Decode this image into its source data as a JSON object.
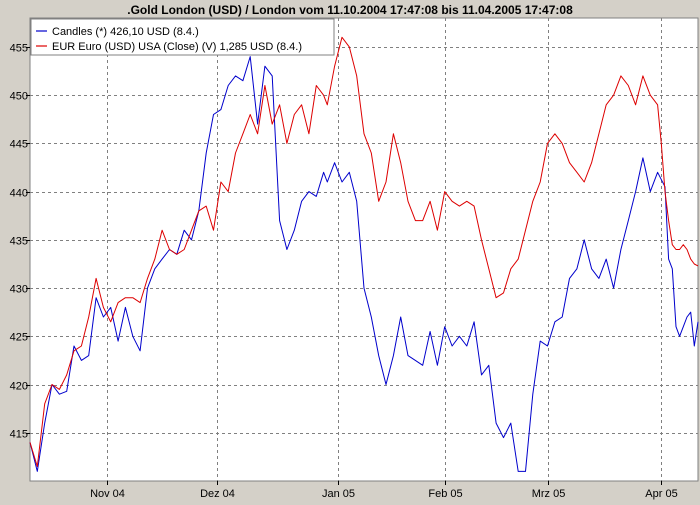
{
  "chart_data": {
    "type": "line",
    "title": ".Gold London (USD) / London vom 11.10.2004 17:47:08 bis 11.04.2005 17:47:08",
    "legend": {
      "placement": "top-left",
      "entries": [
        "Candles (*) 426,10 USD (8.4.)",
        "EUR Euro (USD) USA (Close) (V) 1,285 USD (8.4.)"
      ]
    },
    "colors": {
      "background": "#ffffff",
      "frame": "#d4d0c8",
      "grid": "#808080"
    },
    "grid": true,
    "x_axis": {
      "range": [
        "2004-10-11",
        "2005-04-11"
      ],
      "ticks": [
        {
          "label": "Nov 04",
          "date": "2004-11-01"
        },
        {
          "label": "Dez 04",
          "date": "2004-12-01"
        },
        {
          "label": "Jan 05",
          "date": "2005-01-03"
        },
        {
          "label": "Feb 05",
          "date": "2005-02-01"
        },
        {
          "label": "Mrz 05",
          "date": "2005-03-01"
        },
        {
          "label": "Apr 05",
          "date": "2005-04-01"
        }
      ]
    },
    "y_axis": {
      "range": [
        410,
        458
      ],
      "ticks": [
        415,
        420,
        425,
        430,
        435,
        440,
        445,
        450,
        455
      ]
    },
    "series": [
      {
        "name": "Candles (*) 426,10 USD (8.4.)",
        "color": "#0000cc",
        "points": [
          [
            "2004-10-11",
            414
          ],
          [
            "2004-10-13",
            411
          ],
          [
            "2004-10-15",
            416
          ],
          [
            "2004-10-17",
            420
          ],
          [
            "2004-10-19",
            419
          ],
          [
            "2004-10-21",
            419.3
          ],
          [
            "2004-10-23",
            424
          ],
          [
            "2004-10-25",
            422.5
          ],
          [
            "2004-10-27",
            423
          ],
          [
            "2004-10-29",
            429
          ],
          [
            "2004-10-31",
            427
          ],
          [
            "2004-11-02",
            428
          ],
          [
            "2004-11-04",
            424.5
          ],
          [
            "2004-11-06",
            428
          ],
          [
            "2004-11-08",
            425
          ],
          [
            "2004-11-10",
            423.5
          ],
          [
            "2004-11-12",
            430
          ],
          [
            "2004-11-14",
            432
          ],
          [
            "2004-11-16",
            433
          ],
          [
            "2004-11-18",
            434
          ],
          [
            "2004-11-20",
            433.5
          ],
          [
            "2004-11-22",
            436
          ],
          [
            "2004-11-24",
            435
          ],
          [
            "2004-11-26",
            438
          ],
          [
            "2004-11-28",
            444
          ],
          [
            "2004-11-30",
            448
          ],
          [
            "2004-12-02",
            448.5
          ],
          [
            "2004-12-04",
            451
          ],
          [
            "2004-12-06",
            452
          ],
          [
            "2004-12-08",
            451.5
          ],
          [
            "2004-12-10",
            454
          ],
          [
            "2004-12-12",
            447
          ],
          [
            "2004-12-14",
            453
          ],
          [
            "2004-12-16",
            452
          ],
          [
            "2004-12-18",
            437
          ],
          [
            "2004-12-20",
            434
          ],
          [
            "2004-12-22",
            436
          ],
          [
            "2004-12-24",
            439
          ],
          [
            "2004-12-26",
            440
          ],
          [
            "2004-12-28",
            439.5
          ],
          [
            "2004-12-30",
            442
          ],
          [
            "2004-12-31",
            441
          ],
          [
            "2005-01-02",
            443
          ],
          [
            "2005-01-04",
            441
          ],
          [
            "2005-01-06",
            442
          ],
          [
            "2005-01-08",
            439
          ],
          [
            "2005-01-10",
            430
          ],
          [
            "2005-01-12",
            427
          ],
          [
            "2005-01-14",
            423
          ],
          [
            "2005-01-16",
            420
          ],
          [
            "2005-01-18",
            423
          ],
          [
            "2005-01-20",
            427
          ],
          [
            "2005-01-22",
            423
          ],
          [
            "2005-01-24",
            422.5
          ],
          [
            "2005-01-26",
            422
          ],
          [
            "2005-01-28",
            425.5
          ],
          [
            "2005-01-30",
            422
          ],
          [
            "2005-02-01",
            426
          ],
          [
            "2005-02-03",
            424
          ],
          [
            "2005-02-05",
            425
          ],
          [
            "2005-02-07",
            424
          ],
          [
            "2005-02-09",
            426.5
          ],
          [
            "2005-02-11",
            421
          ],
          [
            "2005-02-13",
            422
          ],
          [
            "2005-02-15",
            416
          ],
          [
            "2005-02-17",
            414.5
          ],
          [
            "2005-02-19",
            416
          ],
          [
            "2005-02-21",
            411
          ],
          [
            "2005-02-23",
            411
          ],
          [
            "2005-02-25",
            419
          ],
          [
            "2005-02-27",
            424.5
          ],
          [
            "2005-03-01",
            424
          ],
          [
            "2005-03-03",
            426.5
          ],
          [
            "2005-03-05",
            427
          ],
          [
            "2005-03-07",
            431
          ],
          [
            "2005-03-09",
            432
          ],
          [
            "2005-03-11",
            435
          ],
          [
            "2005-03-13",
            432
          ],
          [
            "2005-03-15",
            431
          ],
          [
            "2005-03-17",
            433
          ],
          [
            "2005-03-19",
            430
          ],
          [
            "2005-03-21",
            434
          ],
          [
            "2005-03-23",
            437
          ],
          [
            "2005-03-25",
            440
          ],
          [
            "2005-03-27",
            443.5
          ],
          [
            "2005-03-29",
            440
          ],
          [
            "2005-03-31",
            442
          ],
          [
            "2005-04-02",
            440.5
          ],
          [
            "2005-04-03",
            433
          ],
          [
            "2005-04-04",
            432
          ],
          [
            "2005-04-05",
            426
          ],
          [
            "2005-04-06",
            425
          ],
          [
            "2005-04-07",
            426
          ],
          [
            "2005-04-08",
            427
          ],
          [
            "2005-04-09",
            427.5
          ],
          [
            "2005-04-10",
            424
          ],
          [
            "2005-04-11",
            426.5
          ]
        ]
      },
      {
        "name": "EUR Euro (USD) USA (Close) (V) 1,285 USD (8.4.)",
        "color": "#dd0000",
        "points": [
          [
            "2004-10-11",
            414
          ],
          [
            "2004-10-13",
            411.5
          ],
          [
            "2004-10-15",
            418
          ],
          [
            "2004-10-17",
            420
          ],
          [
            "2004-10-19",
            419.5
          ],
          [
            "2004-10-21",
            421
          ],
          [
            "2004-10-23",
            423.5
          ],
          [
            "2004-10-25",
            424
          ],
          [
            "2004-10-27",
            427
          ],
          [
            "2004-10-29",
            431
          ],
          [
            "2004-10-31",
            428
          ],
          [
            "2004-11-02",
            426.5
          ],
          [
            "2004-11-04",
            428.5
          ],
          [
            "2004-11-06",
            429
          ],
          [
            "2004-11-08",
            429
          ],
          [
            "2004-11-10",
            428.5
          ],
          [
            "2004-11-12",
            431
          ],
          [
            "2004-11-14",
            433
          ],
          [
            "2004-11-16",
            436
          ],
          [
            "2004-11-18",
            434
          ],
          [
            "2004-11-20",
            433.5
          ],
          [
            "2004-11-22",
            434
          ],
          [
            "2004-11-24",
            436
          ],
          [
            "2004-11-26",
            438
          ],
          [
            "2004-11-28",
            438.5
          ],
          [
            "2004-11-30",
            436
          ],
          [
            "2004-12-02",
            441
          ],
          [
            "2004-12-04",
            440
          ],
          [
            "2004-12-06",
            444
          ],
          [
            "2004-12-08",
            446
          ],
          [
            "2004-12-10",
            448
          ],
          [
            "2004-12-12",
            446
          ],
          [
            "2004-12-14",
            451
          ],
          [
            "2004-12-16",
            447
          ],
          [
            "2004-12-18",
            449
          ],
          [
            "2004-12-20",
            445
          ],
          [
            "2004-12-22",
            448
          ],
          [
            "2004-12-24",
            449
          ],
          [
            "2004-12-26",
            446
          ],
          [
            "2004-12-28",
            451
          ],
          [
            "2004-12-30",
            450
          ],
          [
            "2004-12-31",
            449
          ],
          [
            "2005-01-02",
            453
          ],
          [
            "2005-01-04",
            456
          ],
          [
            "2005-01-06",
            455
          ],
          [
            "2005-01-08",
            452
          ],
          [
            "2005-01-10",
            446
          ],
          [
            "2005-01-12",
            444
          ],
          [
            "2005-01-14",
            439
          ],
          [
            "2005-01-16",
            441
          ],
          [
            "2005-01-18",
            446
          ],
          [
            "2005-01-20",
            443
          ],
          [
            "2005-01-22",
            439
          ],
          [
            "2005-01-24",
            437
          ],
          [
            "2005-01-26",
            437
          ],
          [
            "2005-01-28",
            439
          ],
          [
            "2005-01-30",
            436
          ],
          [
            "2005-02-01",
            440
          ],
          [
            "2005-02-03",
            439
          ],
          [
            "2005-02-05",
            438.5
          ],
          [
            "2005-02-07",
            439
          ],
          [
            "2005-02-09",
            438.5
          ],
          [
            "2005-02-11",
            435
          ],
          [
            "2005-02-13",
            432
          ],
          [
            "2005-02-15",
            429
          ],
          [
            "2005-02-17",
            429.5
          ],
          [
            "2005-02-19",
            432
          ],
          [
            "2005-02-21",
            433
          ],
          [
            "2005-02-23",
            436
          ],
          [
            "2005-02-25",
            439
          ],
          [
            "2005-02-27",
            441
          ],
          [
            "2005-03-01",
            445
          ],
          [
            "2005-03-03",
            446
          ],
          [
            "2005-03-05",
            445
          ],
          [
            "2005-03-07",
            443
          ],
          [
            "2005-03-09",
            442
          ],
          [
            "2005-03-11",
            441
          ],
          [
            "2005-03-13",
            443
          ],
          [
            "2005-03-15",
            446
          ],
          [
            "2005-03-17",
            449
          ],
          [
            "2005-03-19",
            450
          ],
          [
            "2005-03-21",
            452
          ],
          [
            "2005-03-23",
            451
          ],
          [
            "2005-03-25",
            449
          ],
          [
            "2005-03-27",
            452
          ],
          [
            "2005-03-29",
            450
          ],
          [
            "2005-03-31",
            449
          ],
          [
            "2005-04-01",
            445
          ],
          [
            "2005-04-02",
            440
          ],
          [
            "2005-04-03",
            437
          ],
          [
            "2005-04-04",
            434.5
          ],
          [
            "2005-04-05",
            434
          ],
          [
            "2005-04-06",
            434
          ],
          [
            "2005-04-07",
            434.5
          ],
          [
            "2005-04-08",
            434
          ],
          [
            "2005-04-09",
            433
          ],
          [
            "2005-04-10",
            432.5
          ],
          [
            "2005-04-11",
            432.3
          ]
        ]
      }
    ]
  }
}
